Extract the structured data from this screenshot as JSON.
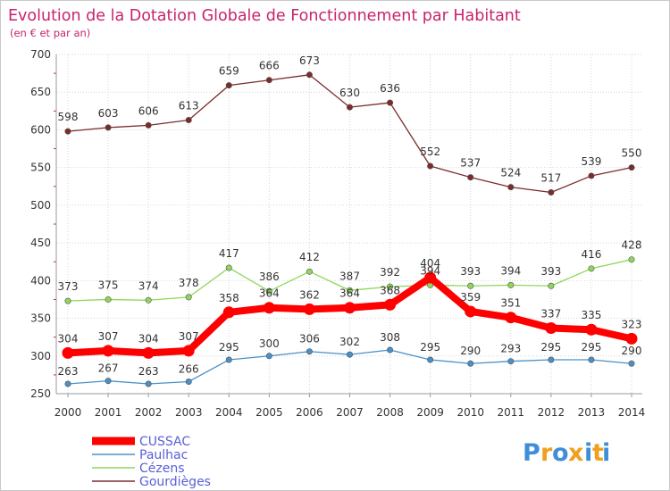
{
  "chart_data": {
    "type": "line",
    "title": "Evolution de la Dotation Globale de Fonctionnement par Habitant",
    "subtitle": "(en € et par an)",
    "xlabel": "",
    "ylabel": "",
    "x": [
      "2000",
      "2001",
      "2002",
      "2003",
      "2004",
      "2005",
      "2006",
      "2007",
      "2008",
      "2009",
      "2010",
      "2011",
      "2012",
      "2013",
      "2014"
    ],
    "ylim": [
      250,
      700
    ],
    "yticks": [
      250,
      300,
      350,
      400,
      450,
      500,
      550,
      600,
      650,
      700
    ],
    "grid": true,
    "legend_position": "bottom-left",
    "series": [
      {
        "name": "CUSSAC",
        "color": "#ff0000",
        "values": [
          304,
          307,
          304,
          307,
          358,
          364,
          362,
          364,
          368,
          404,
          359,
          351,
          337,
          335,
          323
        ]
      },
      {
        "name": "Paulhac",
        "color": "#4a90c8",
        "values": [
          263,
          267,
          263,
          266,
          295,
          300,
          306,
          302,
          308,
          295,
          290,
          293,
          295,
          295,
          290
        ]
      },
      {
        "name": "Cézens",
        "color": "#8fd65a",
        "values": [
          373,
          375,
          374,
          378,
          417,
          386,
          412,
          387,
          392,
          394,
          393,
          394,
          393,
          416,
          428
        ]
      },
      {
        "name": "Gourdièges",
        "color": "#7b2b2b",
        "values": [
          598,
          603,
          606,
          613,
          659,
          666,
          673,
          630,
          636,
          552,
          537,
          524,
          517,
          539,
          550
        ]
      }
    ]
  },
  "logo": {
    "letters": [
      "P",
      "r",
      "o",
      "x",
      "i",
      "t",
      "i"
    ],
    "colors": [
      "#3f8fd8",
      "#f0a020",
      "#3f8fd8",
      "#f0a020",
      "#3f8fd8",
      "#f0a020",
      "#3f8fd8"
    ]
  }
}
